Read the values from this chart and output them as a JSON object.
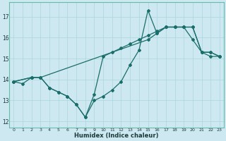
{
  "xlabel": "Humidex (Indice chaleur)",
  "bg_color": "#cde8f0",
  "line_color": "#1a6e6a",
  "grid_color": "#b0d8e0",
  "xlim": [
    -0.5,
    23.5
  ],
  "ylim": [
    11.7,
    17.7
  ],
  "xticks": [
    0,
    1,
    2,
    3,
    4,
    5,
    6,
    7,
    8,
    9,
    10,
    11,
    12,
    13,
    14,
    15,
    16,
    17,
    18,
    19,
    20,
    21,
    22,
    23
  ],
  "yticks": [
    12,
    13,
    14,
    15,
    16,
    17
  ],
  "series_jagged": {
    "x": [
      0,
      1,
      2,
      3,
      4,
      5,
      6,
      7,
      8,
      9,
      10,
      11,
      12,
      13,
      14,
      15,
      16,
      17,
      18,
      19,
      20,
      21,
      22,
      23
    ],
    "y": [
      13.9,
      13.8,
      14.1,
      14.1,
      13.6,
      13.4,
      13.2,
      12.8,
      12.2,
      13.0,
      13.2,
      13.5,
      13.9,
      14.7,
      15.4,
      17.3,
      16.2,
      16.5,
      16.5,
      16.5,
      15.9,
      15.3,
      15.1,
      15.1
    ]
  },
  "series_triangle": {
    "x": [
      0,
      2,
      3,
      4,
      5,
      6,
      7,
      8,
      9,
      10,
      11,
      12,
      13,
      14,
      15,
      16,
      17,
      18,
      19,
      20,
      21,
      22,
      23
    ],
    "y": [
      13.9,
      14.1,
      14.1,
      13.6,
      13.4,
      13.2,
      12.8,
      12.2,
      13.3,
      15.1,
      15.3,
      15.5,
      15.7,
      15.9,
      16.1,
      16.3,
      16.5,
      16.5,
      16.5,
      16.5,
      15.3,
      15.3,
      15.1
    ]
  },
  "series_straight": {
    "x": [
      0,
      2,
      3,
      15,
      16,
      17,
      18,
      19,
      20,
      21,
      22,
      23
    ],
    "y": [
      13.9,
      14.1,
      14.1,
      15.9,
      16.2,
      16.5,
      16.5,
      16.5,
      16.5,
      15.3,
      15.3,
      15.1
    ]
  }
}
